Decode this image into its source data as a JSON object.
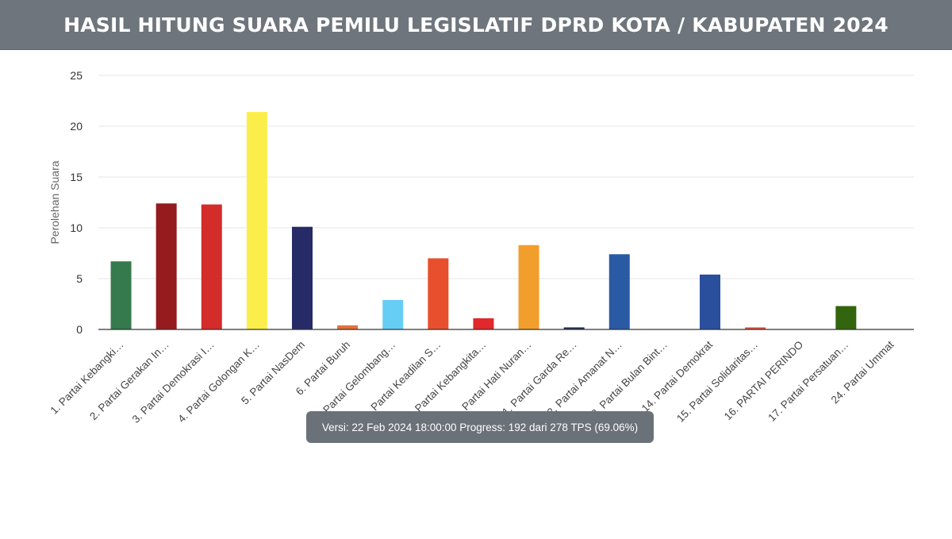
{
  "header": {
    "title": "HASIL HITUNG SUARA PEMILU LEGISLATIF DPRD KOTA / KABUPATEN 2024"
  },
  "tooltip": {
    "text": "Versi: 22 Feb 2024 18:00:00 Progress: 192 dari 278 TPS (69.06%)"
  },
  "chart_data": {
    "type": "bar",
    "title": "",
    "xlabel": "",
    "ylabel": "Perolehan Suara",
    "ylim": [
      0,
      25
    ],
    "yticks": [
      0,
      5,
      10,
      15,
      20,
      25
    ],
    "grid": true,
    "legend": "none",
    "categories": [
      "1. Partai Kebangki…",
      "2. Partai Gerakan In…",
      "3. Partai Demokrasi I…",
      "4. Partai Golongan K…",
      "5. Partai NasDem",
      "6. Partai Buruh",
      "7. Partai Gelombang…",
      "8. Partai Keadilan S…",
      "9. Partai Kebangkita…",
      "10. Partai Hati Nuran…",
      "11. Partai Garda Re…",
      "12. Partai Amanat N…",
      "13. Partai Bulan Bint…",
      "14. Partai Demokrat",
      "15. Partai Solidaritas…",
      "16. PARTAI PERINDO",
      "17. Partai Persatuan…",
      "24. Partai Ummat"
    ],
    "values": [
      6.7,
      12.4,
      12.3,
      21.4,
      10.1,
      0.4,
      2.9,
      7.0,
      1.1,
      8.3,
      0.2,
      7.4,
      0,
      5.4,
      0.2,
      0,
      2.3,
      0
    ],
    "colors": [
      "#357a4c",
      "#951b1e",
      "#d42b2b",
      "#fcee4a",
      "#262a67",
      "#e2703a",
      "#66cdf5",
      "#e84f2c",
      "#e0282d",
      "#f19e2c",
      "#1c2c4c",
      "#2a5aa4",
      "#2a6a3a",
      "#2a4f9c",
      "#e24b3a",
      "#1f3a7a",
      "#33650e",
      "#1f5a2a"
    ]
  }
}
